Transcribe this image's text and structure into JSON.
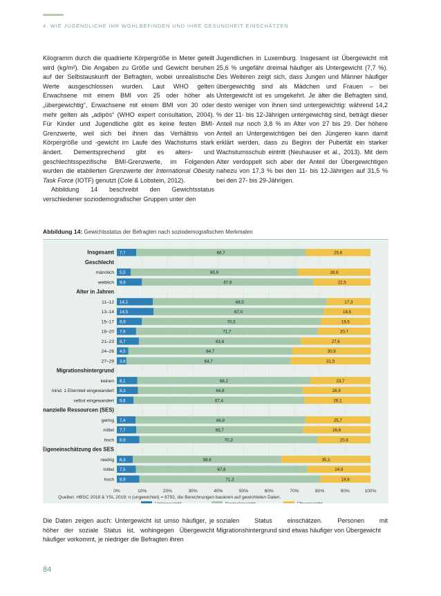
{
  "header": {
    "running_head": "4. WIE JUGENDLICHE IHR WOHLBEFINDEN UND IHRE GESUNDHEIT EINSCHÄTZEN"
  },
  "text": {
    "left_p1": "Kilogramm durch die quadrierte Körpergröße in Meter geteilt wird (kg/m²). Die Angaben zu Größe und Gewicht beruhen auf der Selbstauskunft der Befragten, wobei unrealistische Werte ausgeschlossen wurden. Laut WHO gelten Erwachsene mit einem BMI von 25 oder höher als „übergewichtig“, Erwachsene mit einem BMI von 30 oder mehr gelten als „adipös“ (WHO expert consultation, 2004). Für Kinder und Jugendliche gibt es keine festen BMI-Grenzwerte, weil sich bei ihnen das Verhältnis von Körpergröße und -gewicht im Laufe des Wachstums stark ändert. Dementsprechend gibt es alters- und geschlechtsspezifische BMI-Grenzwerte, im Folgenden wurden die etablierten Grenzwerte der ",
    "left_p1_italic": "International Obesity Task Force",
    "left_p1_end": " (IOTF) genutzt (Cole & Lobstein, 2012).",
    "left_p2": "Abbildung 14 beschreibt den Gewichtsstatus verschiedener soziodemografischer Gruppen unter den",
    "right_p1": "Jugendlichen in Luxemburg. Insgesamt ist Übergewicht mit 25,6 % ungefähr dreimal häufiger als Untergewicht (7,7 %). Des Weiteren zeigt sich, dass Jungen und Männer häufiger übergewichtig sind als Mädchen und Frauen – bei Untergewicht ist es umgekehrt. Je älter die Befragten sind, desto weniger von ihnen sind untergewichtig: während 14,2 % der 11- bis 12-Jährigen untergewichtig sind, beträgt dieser Anteil nur noch 3,8 % im Alter von 27 bis 29. Der höhere Anteil an Untergewichtigen bei den Jüngeren kann damit erklärt werden, dass zu Beginn der Pubertät ein starker Wachstumsschub eintritt (Neuhauser et al., 2013). Mit dem Alter verdoppelt sich aber der Anteil der Übergewichtigen nahezu von 17,3 % bei den 11- bis 12-Jährigen auf 31,5 % bei den 27- bis 29-Jährigen.",
    "bottom_left": "Die Daten zeigen auch: Untergewicht ist umso häufiger, je höher der soziale Status ist, wohingegen Übergewicht häufiger vorkommt, je niedriger die Befragten ihren",
    "bottom_right": "sozialen Status einschätzen. Personen mit Migrationshintergrund sind etwas häufiger von Übergewicht"
  },
  "figure": {
    "caption_label": "Abbildung 14:",
    "caption_text": " Gewichtsstatus der Befragten nach soziodemografischen Merkmalen",
    "source": "Quellen: HBSC 2018 & YSL 2019; n (ungewichtet) = 8792, die Berechnungen basieren auf gewichteten Daten."
  },
  "page_number": "84",
  "colors": {
    "under": "#2e7fb8",
    "normal": "#a6c9ad",
    "over": "#f0c24a",
    "chart_bg": "#e9f0eb",
    "accent": "#7fa98a"
  },
  "chart_data": {
    "type": "bar",
    "orientation": "horizontal",
    "stacked": true,
    "xlim": [
      0,
      100
    ],
    "x_ticks": [
      "0%",
      "10%",
      "20%",
      "30%",
      "40%",
      "50%",
      "60%",
      "70%",
      "80%",
      "90%",
      "100%"
    ],
    "legend": [
      "Untergewicht",
      "Normalgewicht",
      "Übergewicht"
    ],
    "legend_position": "bottom",
    "rows": [
      {
        "label": "Insgesamt",
        "bold": true,
        "values": [
          "7,7",
          "66,7",
          "25,6"
        ]
      },
      {
        "label": "Geschlecht",
        "header": true
      },
      {
        "label": "männlich",
        "values": [
          "5,5",
          "65,9",
          "28,6"
        ]
      },
      {
        "label": "weiblich",
        "values": [
          "9,9",
          "67,6",
          "22,5"
        ]
      },
      {
        "label": "Alter in Jahren",
        "header": true
      },
      {
        "label": "11–12",
        "values": [
          "14,2",
          "68,5",
          "17,3"
        ]
      },
      {
        "label": "13–14",
        "values": [
          "14,5",
          "67,0",
          "18,5"
        ]
      },
      {
        "label": "15–17",
        "values": [
          "9,9",
          "70,5",
          "19,5"
        ]
      },
      {
        "label": "18–20",
        "values": [
          "7,6",
          "71,7",
          "20,7"
        ]
      },
      {
        "label": "21–23",
        "values": [
          "8,7",
          "63,8",
          "27,6"
        ]
      },
      {
        "label": "24–26",
        "values": [
          "4,5",
          "64,7",
          "30,9"
        ]
      },
      {
        "label": "27–29",
        "values": [
          "3,8",
          "64,7",
          "31,5"
        ]
      },
      {
        "label": "Migrationshintergrund",
        "header": true
      },
      {
        "label": "keinen",
        "values": [
          "8,1",
          "68,2",
          "23,7"
        ]
      },
      {
        "label": "mind. 1 Elternteil eingewandert",
        "values": [
          "8,3",
          "64,8",
          "26,9"
        ]
      },
      {
        "label": "selbst eingewandert",
        "values": [
          "6,6",
          "67,4",
          "26,1"
        ]
      },
      {
        "label": "finanzielle Ressourcen (SES)",
        "header": true
      },
      {
        "label": "gering",
        "values": [
          "7,4",
          "66,9",
          "25,7"
        ]
      },
      {
        "label": "mittel",
        "values": [
          "7,7",
          "65,7",
          "26,6"
        ]
      },
      {
        "label": "hoch",
        "values": [
          "8,9",
          "70,3",
          "20,8"
        ]
      },
      {
        "label": "Eigeneinschätzung des SES",
        "header": true
      },
      {
        "label": "niedrig",
        "values": [
          "6,3",
          "58,6",
          "35,1"
        ]
      },
      {
        "label": "mittel",
        "values": [
          "7,5",
          "67,6",
          "24,9"
        ]
      },
      {
        "label": "hoch",
        "values": [
          "8,9",
          "71,3",
          "19,8"
        ]
      }
    ]
  }
}
